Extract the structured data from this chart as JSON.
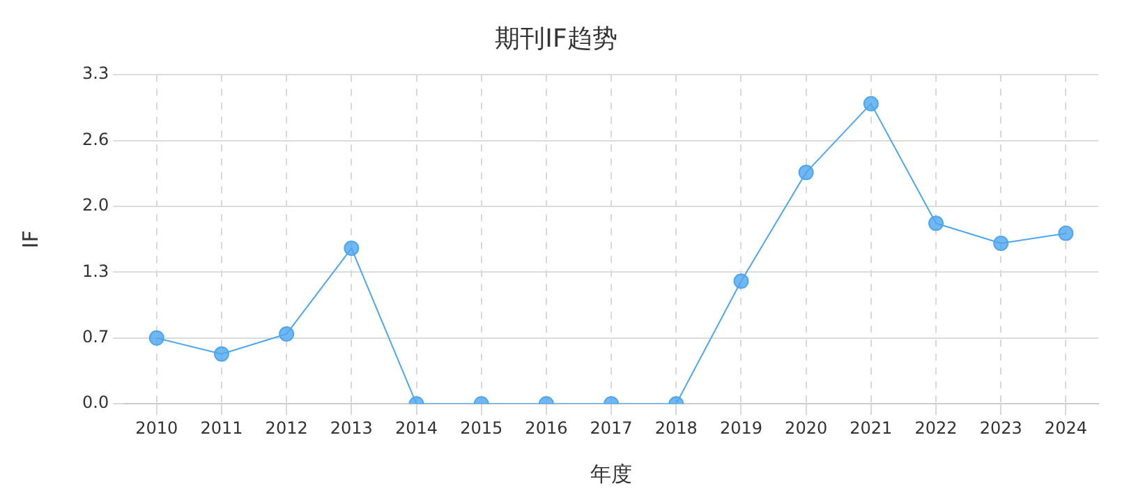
{
  "chart_data": {
    "type": "line",
    "title": "期刊IF趋势",
    "xlabel": "年度",
    "ylabel": "IF",
    "categories": [
      "2010",
      "2011",
      "2012",
      "2013",
      "2014",
      "2015",
      "2016",
      "2017",
      "2018",
      "2019",
      "2020",
      "2021",
      "2022",
      "2023",
      "2024"
    ],
    "series": [
      {
        "color": "#4da6f0",
        "values": [
          0.66,
          0.5,
          0.7,
          1.56,
          0,
          0,
          0,
          0,
          0,
          1.23,
          2.32,
          3.01,
          1.81,
          1.61,
          1.71
        ]
      }
    ],
    "ylim": [
      0,
      3.3
    ],
    "yticks": [
      {
        "value": 0,
        "label": "0.0"
      },
      {
        "value": 0.66,
        "label": "0.7"
      },
      {
        "value": 1.32,
        "label": "1.3"
      },
      {
        "value": 1.98,
        "label": "2.0"
      },
      {
        "value": 2.64,
        "label": "2.6"
      },
      {
        "value": 3.3,
        "label": "3.3"
      }
    ],
    "grid": true,
    "legend": false,
    "marker": "circle",
    "line_style": "solid"
  }
}
